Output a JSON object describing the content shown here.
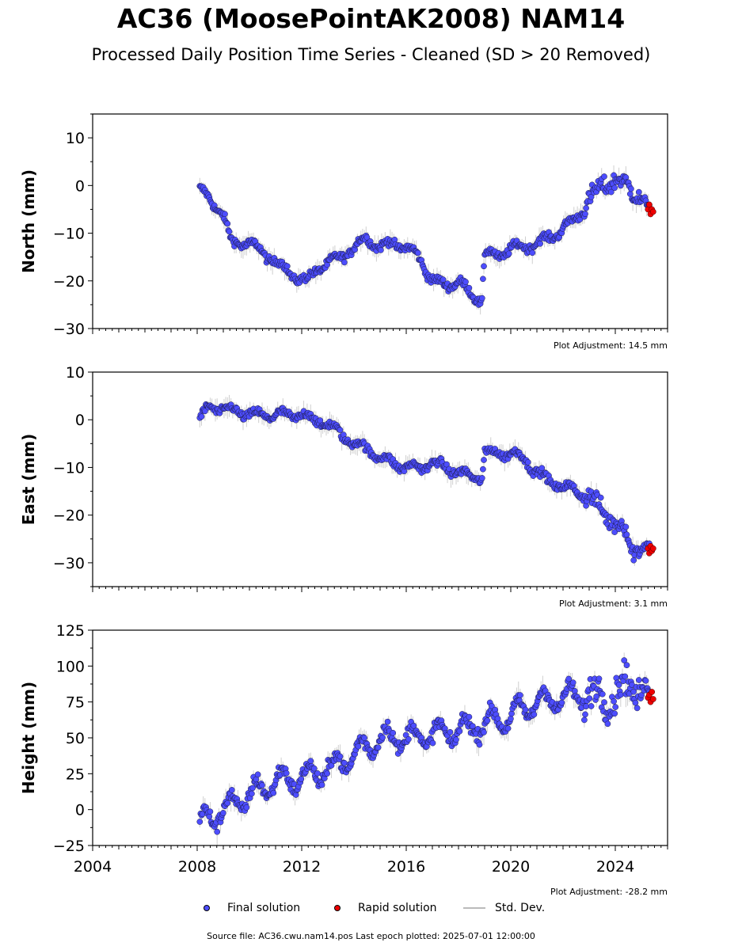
{
  "header": {
    "title": "AC36 (MoosePointAK2008) NAM14",
    "subtitle": "Processed Daily Position Time Series - Cleaned (SD > 20 Removed)"
  },
  "chart_data": [
    {
      "type": "scatter",
      "panel": "north",
      "ylabel": "North (mm)",
      "ylim": [
        -30,
        15
      ],
      "yticks": [
        -30,
        -20,
        -10,
        0,
        10
      ],
      "xlim": [
        2004,
        2026
      ],
      "xticks": [
        2004,
        2008,
        2012,
        2016,
        2020,
        2024
      ],
      "adjustment": "Plot Adjustment: 14.5 mm",
      "trend": [
        [
          2008.1,
          -1
        ],
        [
          2008.5,
          -3
        ],
        [
          2009.0,
          -6
        ],
        [
          2009.3,
          -12
        ],
        [
          2010.0,
          -12
        ],
        [
          2010.5,
          -14
        ],
        [
          2011.0,
          -16
        ],
        [
          2011.7,
          -19
        ],
        [
          2012.2,
          -20
        ],
        [
          2012.7,
          -17
        ],
        [
          2013.5,
          -15
        ],
        [
          2014.0,
          -13
        ],
        [
          2014.5,
          -11
        ],
        [
          2015.0,
          -13
        ],
        [
          2015.5,
          -12
        ],
        [
          2016.0,
          -13
        ],
        [
          2016.5,
          -15
        ],
        [
          2017.0,
          -20
        ],
        [
          2017.5,
          -21
        ],
        [
          2018.0,
          -20
        ],
        [
          2018.5,
          -23
        ],
        [
          2018.9,
          -24
        ],
        [
          2019.0,
          -14
        ],
        [
          2019.5,
          -15
        ],
        [
          2020.0,
          -13
        ],
        [
          2020.5,
          -13
        ],
        [
          2021.0,
          -12
        ],
        [
          2021.5,
          -11
        ],
        [
          2022.0,
          -9
        ],
        [
          2022.5,
          -7
        ],
        [
          2023.0,
          -3
        ],
        [
          2023.5,
          0
        ],
        [
          2024.0,
          1
        ],
        [
          2024.5,
          0
        ],
        [
          2025.0,
          -3
        ],
        [
          2025.3,
          -5
        ]
      ],
      "rapid": [
        [
          2025.25,
          -5
        ],
        [
          2025.3,
          -4
        ],
        [
          2025.35,
          -6
        ],
        [
          2025.4,
          -5
        ],
        [
          2025.45,
          -5.5
        ]
      ]
    },
    {
      "type": "scatter",
      "panel": "east",
      "ylabel": "East (mm)",
      "ylim": [
        -35,
        10
      ],
      "yticks": [
        -30,
        -20,
        -10,
        0,
        10
      ],
      "xlim": [
        2004,
        2026
      ],
      "xticks": [
        2004,
        2008,
        2012,
        2016,
        2020,
        2024
      ],
      "adjustment": "Plot Adjustment: 3.1 mm",
      "trend": [
        [
          2008.1,
          0
        ],
        [
          2008.5,
          3
        ],
        [
          2009.0,
          2
        ],
        [
          2009.5,
          2
        ],
        [
          2010.0,
          1
        ],
        [
          2011.0,
          1
        ],
        [
          2012.0,
          1
        ],
        [
          2012.5,
          0
        ],
        [
          2013.0,
          -1
        ],
        [
          2013.5,
          -3
        ],
        [
          2014.0,
          -5
        ],
        [
          2014.5,
          -6
        ],
        [
          2015.0,
          -8
        ],
        [
          2015.5,
          -9
        ],
        [
          2016.0,
          -10
        ],
        [
          2016.5,
          -10
        ],
        [
          2017.0,
          -9
        ],
        [
          2017.5,
          -10
        ],
        [
          2018.0,
          -11
        ],
        [
          2018.5,
          -12
        ],
        [
          2018.9,
          -12
        ],
        [
          2019.0,
          -7
        ],
        [
          2019.5,
          -7
        ],
        [
          2020.0,
          -7
        ],
        [
          2020.5,
          -8
        ],
        [
          2021.0,
          -11
        ],
        [
          2021.5,
          -13
        ],
        [
          2022.0,
          -14
        ],
        [
          2022.5,
          -15
        ],
        [
          2023.0,
          -16
        ],
        [
          2023.5,
          -19
        ],
        [
          2024.0,
          -22
        ],
        [
          2024.4,
          -23
        ],
        [
          2024.6,
          -27
        ],
        [
          2025.0,
          -27
        ],
        [
          2025.3,
          -27
        ]
      ],
      "rapid": [
        [
          2025.25,
          -27
        ],
        [
          2025.3,
          -28
        ],
        [
          2025.35,
          -26.5
        ],
        [
          2025.4,
          -27.5
        ],
        [
          2025.45,
          -27
        ]
      ]
    },
    {
      "type": "scatter",
      "panel": "height",
      "ylabel": "Height (mm)",
      "ylim": [
        -25,
        125
      ],
      "yticks": [
        -25,
        0,
        25,
        50,
        75,
        100,
        125
      ],
      "xlim": [
        2004,
        2026
      ],
      "xticks": [
        2004,
        2008,
        2012,
        2016,
        2020,
        2024
      ],
      "xticklabels": [
        "2004",
        "2008",
        "2012",
        "2016",
        "2020",
        "2024"
      ],
      "adjustment": "Plot Adjustment: -28.2 mm",
      "trend": [
        [
          2008.1,
          -10
        ],
        [
          2009.0,
          0
        ],
        [
          2010.0,
          10
        ],
        [
          2011.0,
          20
        ],
        [
          2012.0,
          22
        ],
        [
          2013.0,
          28
        ],
        [
          2014.0,
          38
        ],
        [
          2015.0,
          50
        ],
        [
          2016.0,
          50
        ],
        [
          2017.0,
          52
        ],
        [
          2018.0,
          55
        ],
        [
          2019.0,
          60
        ],
        [
          2020.0,
          65
        ],
        [
          2021.0,
          75
        ],
        [
          2022.0,
          78
        ],
        [
          2023.0,
          80
        ],
        [
          2024.0,
          78
        ],
        [
          2024.5,
          90
        ],
        [
          2025.0,
          82
        ],
        [
          2025.3,
          78
        ]
      ],
      "rapid": [
        [
          2025.25,
          78
        ],
        [
          2025.3,
          80
        ],
        [
          2025.35,
          75
        ],
        [
          2025.4,
          82
        ],
        [
          2025.45,
          77
        ]
      ]
    }
  ],
  "legend": {
    "final_label": "Final solution",
    "rapid_label": "Rapid solution",
    "std_label": "Std. Dev.",
    "final_color": "#4d4dff",
    "rapid_color": "#ee0000",
    "std_color": "#bbbbbb"
  },
  "footer": {
    "source": "Source file: AC36.cwu.nam14.pos  Last epoch plotted: 2025-07-01 12:00:00"
  }
}
